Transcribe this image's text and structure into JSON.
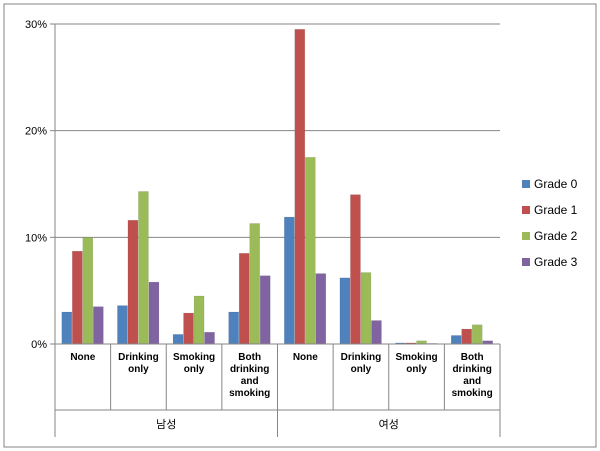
{
  "chart_data": {
    "type": "bar",
    "title": "",
    "xlabel": "",
    "ylabel": "",
    "ylim": [
      0,
      30
    ],
    "y_ticks": [
      "0%",
      "10%",
      "20%",
      "30%"
    ],
    "grid": "horizontal",
    "legend_position": "right",
    "groups": [
      {
        "label": "남성",
        "categories": [
          [
            "None"
          ],
          [
            "Drinking",
            "only"
          ],
          [
            "Smoking",
            "only"
          ],
          [
            "Both",
            "drinking",
            "and",
            "smoking"
          ]
        ]
      },
      {
        "label": "여성",
        "categories": [
          [
            "None"
          ],
          [
            "Drinking",
            "only"
          ],
          [
            "Smoking",
            "only"
          ],
          [
            "Both",
            "drinking",
            "and",
            "smoking"
          ]
        ]
      }
    ],
    "series": [
      {
        "name": "Grade 0",
        "color": "#4F81BD",
        "values": [
          3.0,
          3.6,
          0.9,
          3.0,
          11.9,
          6.2,
          0.1,
          0.8
        ]
      },
      {
        "name": "Grade 1",
        "color": "#C0504D",
        "values": [
          8.7,
          11.6,
          2.9,
          8.5,
          29.5,
          14.0,
          0.1,
          1.4
        ]
      },
      {
        "name": "Grade 2",
        "color": "#9BBB59",
        "values": [
          10.0,
          14.3,
          4.5,
          11.3,
          17.5,
          6.7,
          0.3,
          1.8
        ]
      },
      {
        "name": "Grade 3",
        "color": "#8064A2",
        "values": [
          3.5,
          5.8,
          1.1,
          6.4,
          6.6,
          2.2,
          0.0,
          0.3
        ]
      }
    ]
  }
}
